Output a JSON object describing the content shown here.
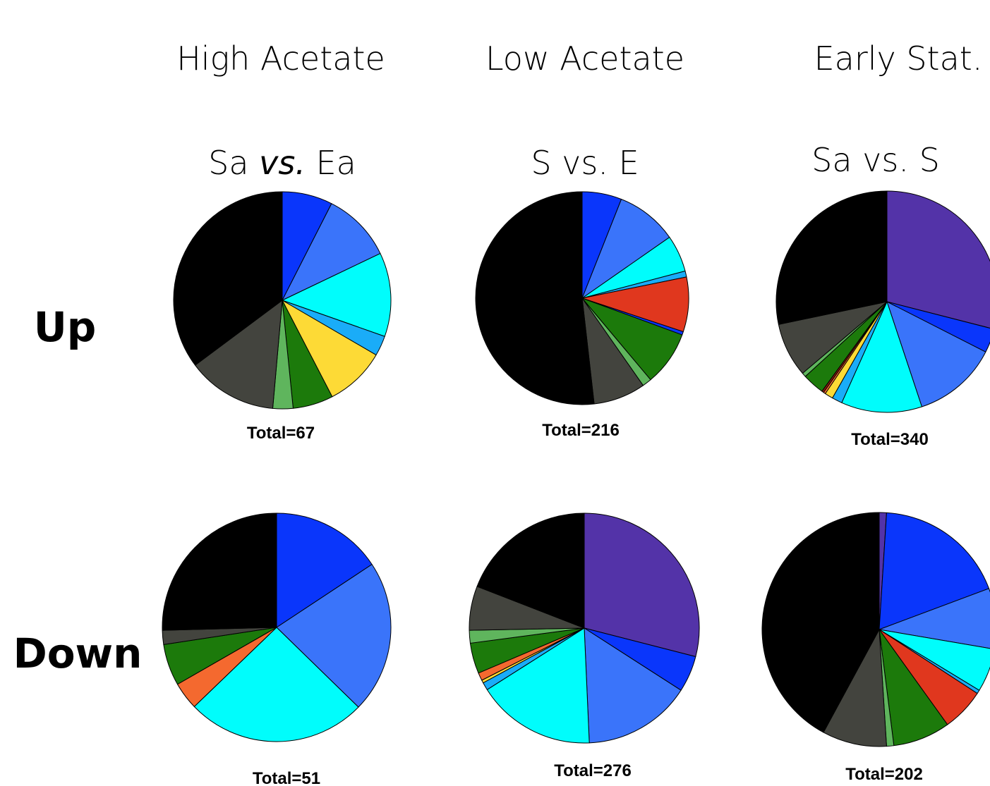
{
  "columns": [
    "High Acetate",
    "Low Acetate",
    "Early Stat."
  ],
  "comparisons": [
    {
      "pre": "Sa ",
      "em": "vs.",
      "post": " Ea"
    },
    {
      "pre": "S vs. E",
      "em": "",
      "post": ""
    },
    {
      "pre": "Sa vs. S",
      "em": "",
      "post": ""
    }
  ],
  "rows": [
    "Up",
    "Down"
  ],
  "colors": {
    "purple": "#5333a8",
    "blue": "#0a36fb",
    "medium_blue": "#3a74fa",
    "cyan": "#00fdfc",
    "sky_blue": "#1aacf8",
    "red": "#e0371e",
    "orange": "#f4692f",
    "dark_red": "#8b1a10",
    "yellow": "#fdda36",
    "dark_green": "#1c7a0b",
    "light_green": "#5fb55d",
    "dark_gray": "#43443e",
    "black": "#000000"
  },
  "chart_data": [
    {
      "type": "pie",
      "column": "High Acetate",
      "row": "Up",
      "comparison": "Sa vs. Ea",
      "total_label": "Total=67",
      "slices": [
        {
          "color": "blue",
          "value": 7.5
        },
        {
          "color": "medium_blue",
          "value": 10.4
        },
        {
          "color": "cyan",
          "value": 12.5
        },
        {
          "color": "sky_blue",
          "value": 3.0
        },
        {
          "color": "yellow",
          "value": 9.0
        },
        {
          "color": "dark_green",
          "value": 6.0
        },
        {
          "color": "light_green",
          "value": 3.0
        },
        {
          "color": "dark_gray",
          "value": 13.4
        },
        {
          "color": "black",
          "value": 35.2
        }
      ]
    },
    {
      "type": "pie",
      "column": "Low Acetate",
      "row": "Up",
      "comparison": "S vs. E",
      "total_label": "Total=216",
      "slices": [
        {
          "color": "blue",
          "value": 6.0
        },
        {
          "color": "medium_blue",
          "value": 9.3
        },
        {
          "color": "cyan",
          "value": 5.6
        },
        {
          "color": "sky_blue",
          "value": 0.9
        },
        {
          "color": "red",
          "value": 8.3
        },
        {
          "color": "blue",
          "value": 0.5
        },
        {
          "color": "dark_green",
          "value": 8.3
        },
        {
          "color": "light_green",
          "value": 1.4
        },
        {
          "color": "dark_gray",
          "value": 7.9
        },
        {
          "color": "black",
          "value": 51.8
        }
      ]
    },
    {
      "type": "pie",
      "column": "Early Stat.",
      "row": "Up",
      "comparison": "Sa vs. S",
      "total_label": "Total=340",
      "slices": [
        {
          "color": "purple",
          "value": 29.0
        },
        {
          "color": "blue",
          "value": 3.5
        },
        {
          "color": "medium_blue",
          "value": 12.4
        },
        {
          "color": "cyan",
          "value": 11.8
        },
        {
          "color": "sky_blue",
          "value": 1.5
        },
        {
          "color": "yellow",
          "value": 1.2
        },
        {
          "color": "orange",
          "value": 0.3
        },
        {
          "color": "dark_red",
          "value": 0.3
        },
        {
          "color": "dark_green",
          "value": 3.2
        },
        {
          "color": "light_green",
          "value": 0.6
        },
        {
          "color": "dark_gray",
          "value": 7.9
        },
        {
          "color": "black",
          "value": 28.3
        }
      ]
    },
    {
      "type": "pie",
      "column": "High Acetate",
      "row": "Down",
      "comparison": "Sa vs. Ea",
      "total_label": "Total=51",
      "slices": [
        {
          "color": "blue",
          "value": 15.7
        },
        {
          "color": "medium_blue",
          "value": 21.6
        },
        {
          "color": "cyan",
          "value": 25.5
        },
        {
          "color": "orange",
          "value": 3.9
        },
        {
          "color": "dark_green",
          "value": 5.9
        },
        {
          "color": "dark_gray",
          "value": 2.0
        },
        {
          "color": "black",
          "value": 25.4
        }
      ]
    },
    {
      "type": "pie",
      "column": "Low Acetate",
      "row": "Down",
      "comparison": "S vs. E",
      "total_label": "Total=276",
      "slices": [
        {
          "color": "purple",
          "value": 29.0
        },
        {
          "color": "blue",
          "value": 5.1
        },
        {
          "color": "medium_blue",
          "value": 15.2
        },
        {
          "color": "cyan",
          "value": 16.7
        },
        {
          "color": "sky_blue",
          "value": 1.1
        },
        {
          "color": "yellow",
          "value": 0.4
        },
        {
          "color": "orange",
          "value": 1.1
        },
        {
          "color": "dark_green",
          "value": 4.3
        },
        {
          "color": "light_green",
          "value": 1.8
        },
        {
          "color": "dark_gray",
          "value": 6.2
        },
        {
          "color": "black",
          "value": 19.1
        }
      ]
    },
    {
      "type": "pie",
      "column": "Early Stat.",
      "row": "Down",
      "comparison": "Sa vs. S",
      "total_label": "Total=202",
      "slices": [
        {
          "color": "purple",
          "value": 1.0
        },
        {
          "color": "blue",
          "value": 18.3
        },
        {
          "color": "medium_blue",
          "value": 8.4
        },
        {
          "color": "cyan",
          "value": 6.0
        },
        {
          "color": "sky_blue",
          "value": 0.5
        },
        {
          "color": "red",
          "value": 5.9
        },
        {
          "color": "dark_green",
          "value": 7.9
        },
        {
          "color": "light_green",
          "value": 1.0
        },
        {
          "color": "dark_gray",
          "value": 8.9
        },
        {
          "color": "black",
          "value": 42.1
        }
      ]
    }
  ]
}
